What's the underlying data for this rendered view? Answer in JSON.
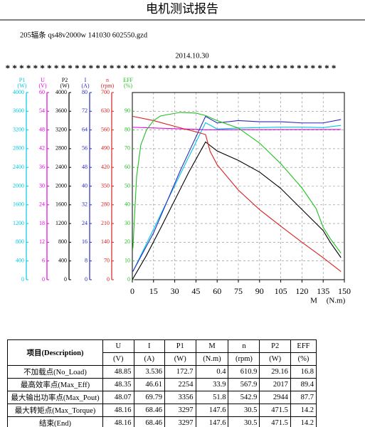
{
  "chart_data": {
    "type": "line",
    "title": "电机测试报告",
    "subtitle": "205辐条 qs48v2000w 141030 602550.gzd",
    "date": "2014.10.30",
    "separator": "* * * * * * * * * * * * * * * * * * * * * * * * * * * * * * * * * * * * * * * * * * * * * * * *",
    "xlabel": "M",
    "xunit": "(N.m)",
    "xlim": [
      0,
      150
    ],
    "xticks": [
      0,
      15,
      30,
      45,
      60,
      75,
      90,
      105,
      120,
      135,
      150
    ],
    "grid": true,
    "series": [
      {
        "name": "P1",
        "unit": "(W)",
        "color": "#00c8e0",
        "ylim": [
          0,
          4000
        ],
        "yticks": [
          0,
          400,
          800,
          1200,
          1600,
          2000,
          2400,
          2800,
          3200,
          3600,
          4000
        ],
        "x": [
          0.4,
          33.9,
          51.8,
          60,
          75,
          90,
          105,
          120,
          135,
          147.6
        ],
        "values": [
          172.7,
          2254,
          3356,
          3220,
          3240,
          3250,
          3260,
          3260,
          3250,
          3297
        ]
      },
      {
        "name": "U",
        "unit": "(V)",
        "color": "#e000e0",
        "ylim": [
          0,
          60
        ],
        "yticks": [
          0,
          6,
          12,
          18,
          24,
          30,
          36,
          42,
          48,
          54,
          60
        ],
        "x": [
          0.4,
          33.9,
          51.8,
          147.6
        ],
        "values": [
          48.85,
          48.35,
          48.07,
          48.16
        ]
      },
      {
        "name": "P2",
        "unit": "(W)",
        "color": "#000000",
        "ylim": [
          0,
          4000
        ],
        "yticks": [
          0,
          400,
          800,
          1200,
          1600,
          2000,
          2400,
          2800,
          3200,
          3600,
          4000
        ],
        "x": [
          0,
          10,
          20,
          30,
          40,
          51.8,
          60,
          75,
          90,
          105,
          120,
          135,
          140,
          147.6
        ],
        "values": [
          0,
          520,
          1100,
          1700,
          2300,
          2944,
          2750,
          2550,
          2300,
          1950,
          1500,
          1050,
          800,
          471.5
        ]
      },
      {
        "name": "I",
        "unit": "(A)",
        "color": "#2828c0",
        "ylim": [
          0,
          80
        ],
        "yticks": [
          0,
          8,
          16,
          24,
          32,
          40,
          48,
          56,
          64,
          72,
          80
        ],
        "x": [
          0.4,
          15,
          33.9,
          51.8,
          60,
          75,
          90,
          105,
          120,
          135,
          147.6
        ],
        "values": [
          3.536,
          20,
          46.61,
          69.79,
          67,
          68,
          67.5,
          67.5,
          67,
          67,
          68.46
        ]
      },
      {
        "name": "n",
        "unit": "(rpm)",
        "color": "#d82020",
        "ylim": [
          0,
          700
        ],
        "yticks": [
          0,
          70,
          140,
          210,
          280,
          350,
          420,
          490,
          560,
          630,
          700
        ],
        "x": [
          0.4,
          15,
          33.9,
          45,
          51.8,
          55,
          60,
          75,
          90,
          105,
          120,
          135,
          147.6
        ],
        "values": [
          610.9,
          595,
          567.9,
          553,
          542.9,
          480,
          430,
          335,
          262,
          200,
          140,
          82,
          30.5
        ]
      },
      {
        "name": "EFF",
        "unit": "(%)",
        "color": "#20c020",
        "ylim": [
          0,
          100
        ],
        "yticks": [
          0,
          10,
          20,
          30,
          40,
          50,
          60,
          70,
          80,
          90
        ],
        "x": [
          0.4,
          3,
          6,
          10,
          15,
          20,
          33.9,
          45,
          51.8,
          60,
          75,
          90,
          105,
          120,
          130,
          135,
          140,
          147.6
        ],
        "values": [
          16.8,
          55,
          72,
          80,
          85,
          87.5,
          89.4,
          89,
          87.7,
          85,
          81,
          73,
          62,
          49,
          38,
          28,
          22,
          14.2
        ]
      }
    ]
  },
  "table": {
    "header": [
      "项目(Description)",
      "U",
      "I",
      "P1",
      "M",
      "n",
      "P2",
      "EFF"
    ],
    "units": [
      "(V)",
      "(A)",
      "(W)",
      "(N.m)",
      "(rpm)",
      "(W)",
      "(%)"
    ],
    "rows": [
      [
        "不加载点(No_Load)",
        "48.85",
        "3.536",
        "172.7",
        "0.4",
        "610.9",
        "29.16",
        "16.8"
      ],
      [
        "最高效率点(Max_Eff)",
        "48.35",
        "46.61",
        "2254",
        "33.9",
        "567.9",
        "2017",
        "89.4"
      ],
      [
        "最大输出功率点(Max_Pout)",
        "48.07",
        "69.79",
        "3356",
        "51.8",
        "542.9",
        "2944",
        "87.7"
      ],
      [
        "最大转矩点(Max_Torque)",
        "48.16",
        "68.46",
        "3297",
        "147.6",
        "30.5",
        "471.5",
        "14.2"
      ],
      [
        "结束(End)",
        "48.16",
        "68.46",
        "3297",
        "147.6",
        "30.5",
        "471.5",
        "14.2"
      ]
    ]
  }
}
